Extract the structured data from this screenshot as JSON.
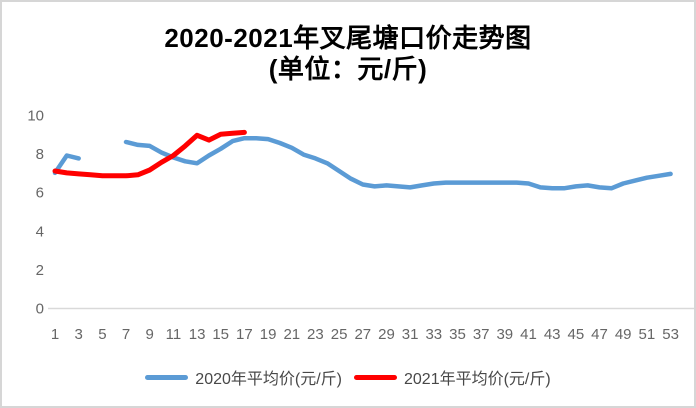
{
  "chart": {
    "title_line1": "2020-2021年叉尾塘口价走势图",
    "title_line2": "(单位：元/斤)"
  },
  "chart_data": {
    "type": "line",
    "title": "2020-2021年叉尾塘口价走势图 (单位：元/斤)",
    "xlabel": "",
    "ylabel": "",
    "xlim": [
      1,
      53
    ],
    "ylim": [
      0,
      10
    ],
    "y_ticks": [
      0,
      2,
      4,
      6,
      8,
      10
    ],
    "x_tick_labels": [
      "1",
      "3",
      "5",
      "7",
      "9",
      "11",
      "13",
      "15",
      "17",
      "19",
      "21",
      "23",
      "25",
      "27",
      "29",
      "31",
      "33",
      "35",
      "37",
      "39",
      "41",
      "43",
      "45",
      "47",
      "49",
      "51",
      "53"
    ],
    "grid": false,
    "legend_position": "bottom",
    "x_unit": "week",
    "series": [
      {
        "id": "2020",
        "name": "2020年平均价(元/斤)",
        "color": "#5B9BD5",
        "values": [
          7.0,
          7.9,
          7.75,
          null,
          null,
          null,
          8.6,
          8.45,
          8.4,
          8.05,
          7.8,
          7.6,
          7.5,
          7.9,
          8.25,
          8.65,
          8.8,
          8.8,
          8.75,
          8.55,
          8.3,
          7.95,
          7.75,
          7.5,
          7.1,
          6.7,
          6.4,
          6.3,
          6.35,
          6.3,
          6.25,
          6.35,
          6.45,
          6.5,
          6.5,
          6.5,
          6.5,
          6.5,
          6.5,
          6.5,
          6.45,
          6.25,
          6.2,
          6.2,
          6.3,
          6.35,
          6.25,
          6.2,
          6.45,
          6.6,
          6.75,
          6.85,
          6.95
        ]
      },
      {
        "id": "2021",
        "name": "2021年平均价(元/斤)",
        "color": "#FF0000",
        "values": [
          7.1,
          7.0,
          6.95,
          6.9,
          6.85,
          6.85,
          6.85,
          6.9,
          7.15,
          7.55,
          7.9,
          8.4,
          8.95,
          8.7,
          9.0,
          9.05,
          9.1
        ]
      }
    ]
  }
}
